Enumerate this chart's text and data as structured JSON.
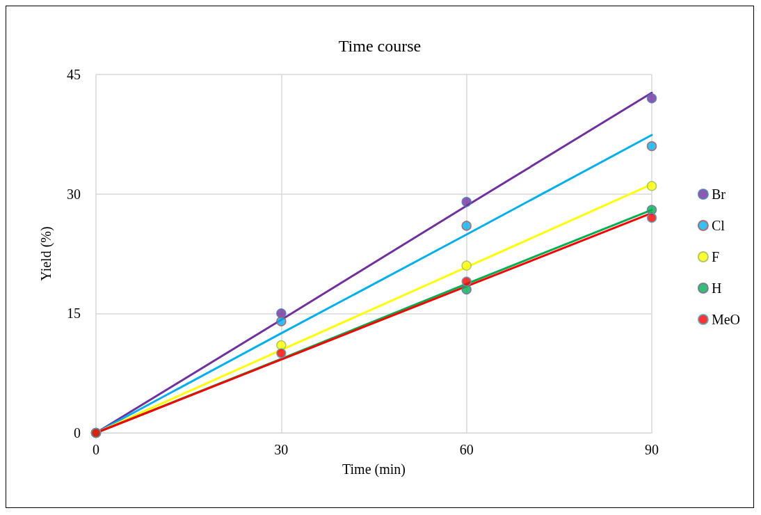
{
  "chart_data": {
    "type": "scatter",
    "title": "Time course",
    "xlabel": "Time (min)",
    "ylabel": "Yield (%)",
    "x": [
      0,
      30,
      60,
      90
    ],
    "series": [
      {
        "name": "Br",
        "color": "#7030a0",
        "values": [
          0,
          15,
          29,
          42
        ]
      },
      {
        "name": "Cl",
        "color": "#00b0f0",
        "values": [
          0,
          14,
          26,
          36
        ]
      },
      {
        "name": "F",
        "color": "#ffff00",
        "values": [
          0,
          11,
          21,
          31
        ]
      },
      {
        "name": "H",
        "color": "#00b050",
        "values": [
          0,
          null,
          18,
          28
        ]
      },
      {
        "name": "MeO",
        "color": "#ff0000",
        "values": [
          0,
          10,
          19,
          27
        ]
      },
      {
        "type": "line",
        "marker": "none",
        "color": "#7030a0",
        "values": [
          0,
          14.2,
          28.5,
          42.7
        ]
      },
      {
        "type": "line",
        "marker": "none",
        "color": "#00b0f0",
        "values": [
          0,
          12.5,
          24.9,
          37.4
        ]
      },
      {
        "type": "line",
        "marker": "none",
        "color": "#ffff00",
        "values": [
          0,
          10.4,
          20.8,
          31.2
        ]
      },
      {
        "type": "line",
        "marker": "none",
        "color": "#00b050",
        "values": [
          0,
          9.3,
          18.7,
          28
        ]
      },
      {
        "type": "line",
        "marker": "none",
        "color": "#ff0000",
        "values": [
          0,
          9.2,
          18.4,
          27.6
        ]
      }
    ],
    "xlim": [
      0,
      90
    ],
    "xticks": [
      0,
      30,
      60,
      90
    ],
    "ylim": [
      0,
      45
    ],
    "yticks": [
      0,
      15,
      30,
      45
    ],
    "grid": true,
    "legend": "right",
    "marker": "circle",
    "line_style": "solid"
  }
}
